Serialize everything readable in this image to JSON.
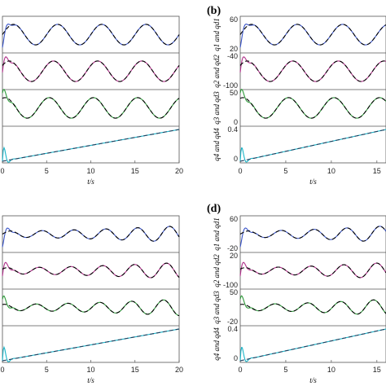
{
  "panel_labels": [
    "(b)",
    "(d)"
  ],
  "colors": {
    "ref": "#000000",
    "q1": "#3a55c8",
    "q2": "#b0308a",
    "q3": "#2e9a3a",
    "q4": "#18b4c8",
    "ref4": "#1f3d5c"
  },
  "chart_data": [
    {
      "id": "a",
      "type": "line",
      "xlabel": "t/s",
      "xlim": [
        0,
        20
      ],
      "xticks": [
        0,
        5,
        10,
        15,
        20
      ],
      "subplots": [
        {
          "ylabel": "",
          "yticks": [],
          "series": [
            {
              "name": "",
              "color": "q1"
            },
            {
              "name": "",
              "color": "ref",
              "dashed": true
            }
          ]
        },
        {
          "ylabel": "",
          "yticks": [],
          "series": [
            {
              "name": "",
              "color": "q2"
            },
            {
              "name": "",
              "color": "ref",
              "dashed": true
            }
          ]
        },
        {
          "ylabel": "",
          "yticks": [],
          "series": [
            {
              "name": "",
              "color": "q3"
            },
            {
              "name": "",
              "color": "ref",
              "dashed": true
            }
          ]
        },
        {
          "ylabel": "",
          "yticks": [],
          "series": [
            {
              "name": "",
              "color": "q4"
            },
            {
              "name": "",
              "color": "ref4",
              "dashed": true
            }
          ]
        }
      ]
    },
    {
      "id": "b",
      "type": "line",
      "xlabel": "t/s",
      "xlim": [
        0,
        16
      ],
      "xticks": [
        0,
        5,
        10,
        15
      ],
      "subplots": [
        {
          "ylabel": "q1 and qd1",
          "yticks": [
            "60",
            "20"
          ],
          "series": [
            {
              "name": "",
              "color": "q1"
            },
            {
              "name": "",
              "color": "ref",
              "dashed": true
            }
          ]
        },
        {
          "ylabel": "q2 and qd2",
          "yticks": [
            "-40",
            "-100"
          ],
          "series": [
            {
              "name": "",
              "color": "q2"
            },
            {
              "name": "",
              "color": "ref",
              "dashed": true
            }
          ]
        },
        {
          "ylabel": "q3 and qd3",
          "yticks": [
            "50",
            "0"
          ],
          "series": [
            {
              "name": "",
              "color": "q3"
            },
            {
              "name": "",
              "color": "ref",
              "dashed": true
            }
          ]
        },
        {
          "ylabel": "q4 and qd4",
          "yticks": [
            "0.4",
            "0"
          ],
          "series": [
            {
              "name": "",
              "color": "q4"
            },
            {
              "name": "",
              "color": "ref4",
              "dashed": true
            }
          ]
        }
      ]
    },
    {
      "id": "c",
      "type": "line",
      "xlabel": "t/s",
      "xlim": [
        0,
        20
      ],
      "xticks": [
        0,
        5,
        10,
        15,
        20
      ],
      "subplots": [
        {
          "ylabel": "",
          "yticks": [],
          "series": [
            {
              "name": "",
              "color": "q1"
            },
            {
              "name": "",
              "color": "ref",
              "dashed": true
            }
          ]
        },
        {
          "ylabel": "",
          "yticks": [],
          "series": [
            {
              "name": "",
              "color": "q2"
            },
            {
              "name": "",
              "color": "ref",
              "dashed": true
            }
          ]
        },
        {
          "ylabel": "",
          "yticks": [],
          "series": [
            {
              "name": "",
              "color": "q3"
            },
            {
              "name": "",
              "color": "ref",
              "dashed": true
            }
          ]
        },
        {
          "ylabel": "",
          "yticks": [],
          "series": [
            {
              "name": "",
              "color": "q4"
            },
            {
              "name": "",
              "color": "ref4",
              "dashed": true
            }
          ]
        }
      ]
    },
    {
      "id": "d",
      "type": "line",
      "xlabel": "t/s",
      "xlim": [
        0,
        16
      ],
      "xticks": [
        0,
        5,
        10,
        15
      ],
      "subplots": [
        {
          "ylabel": "q1 and qd1",
          "yticks": [
            "60",
            "-20"
          ],
          "series": [
            {
              "name": "",
              "color": "q1"
            },
            {
              "name": "",
              "color": "ref",
              "dashed": true
            }
          ]
        },
        {
          "ylabel": "q2 and qd2",
          "yticks": [
            "20",
            "-100"
          ],
          "series": [
            {
              "name": "",
              "color": "q2"
            },
            {
              "name": "",
              "color": "ref",
              "dashed": true
            }
          ]
        },
        {
          "ylabel": "q3 and qd3",
          "yticks": [
            "50",
            "-20"
          ],
          "series": [
            {
              "name": "",
              "color": "q3"
            },
            {
              "name": "",
              "color": "ref",
              "dashed": true
            }
          ]
        },
        {
          "ylabel": "q4 and qd4",
          "yticks": [
            "0.4",
            "0"
          ],
          "series": [
            {
              "name": "",
              "color": "q4"
            },
            {
              "name": "",
              "color": "ref4",
              "dashed": true
            }
          ]
        }
      ]
    }
  ]
}
